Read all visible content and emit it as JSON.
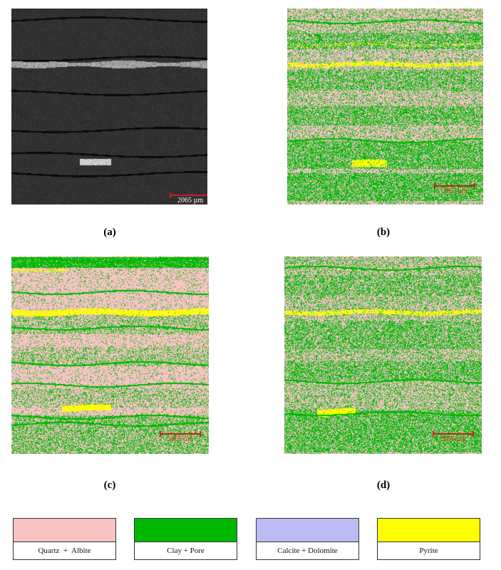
{
  "panels": [
    {
      "caption": "(a)",
      "scale_label": "2065 µm",
      "scale_color": "#ffffff",
      "kind": "sem"
    },
    {
      "caption": "(b)",
      "scale_label": "2065 µm",
      "scale_color": "#d43a2a",
      "kind": "classified-b"
    },
    {
      "caption": "(c)",
      "scale_label": "2065 µm",
      "scale_color": "#d43a2a",
      "kind": "classified-c"
    },
    {
      "caption": "(d)",
      "scale_label": "2065 µm",
      "scale_color": "#d43a2a",
      "kind": "classified-d"
    }
  ],
  "legend": [
    {
      "label": "Quartz  +  Albite",
      "color": "#f9c3c3"
    },
    {
      "label": "Clay + Pore",
      "color": "#00b800"
    },
    {
      "label": "Calcite + Dolomite",
      "color": "#bcbcf5"
    },
    {
      "label": "Pyrite",
      "color": "#ffff00"
    }
  ]
}
